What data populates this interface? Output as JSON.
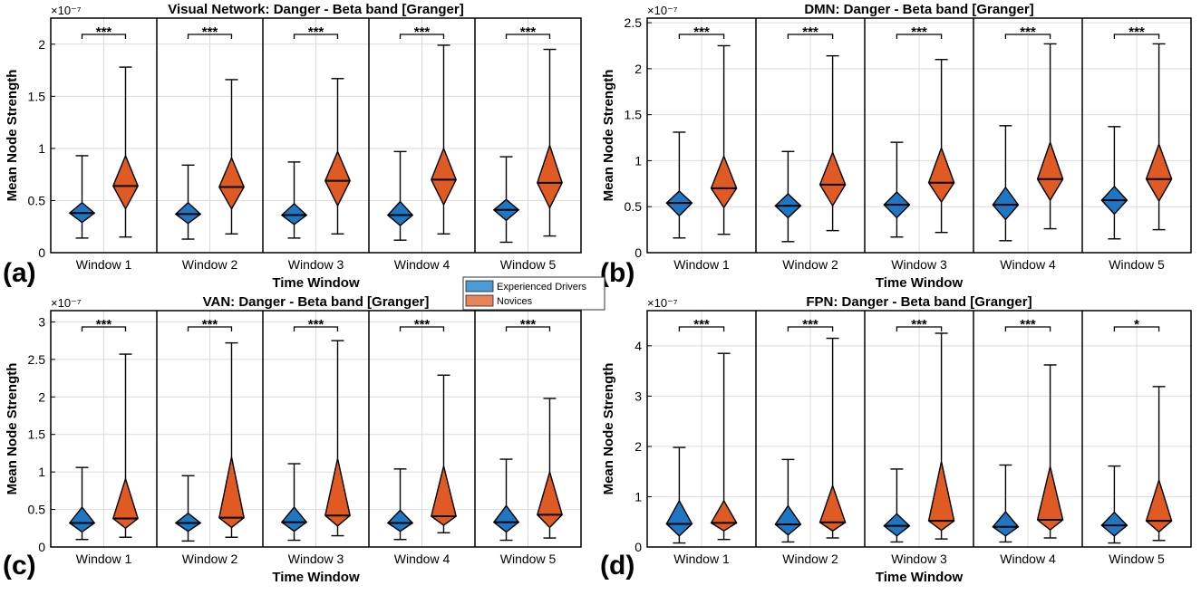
{
  "chart_data": [
    {
      "panel": "(a)",
      "type": "violin-box",
      "title": "Visual Network: Danger - Beta band [Granger]",
      "xlabel": "Time Window",
      "ylabel": "Mean Node Strength",
      "exponent": "×10⁻⁷",
      "ylim": [
        0,
        2.25
      ],
      "yticks": [
        0,
        0.5,
        1,
        1.5,
        2
      ],
      "ytick_labels": [
        "0",
        "0.5",
        "1",
        "1.5",
        "2"
      ],
      "grid": true,
      "categories": [
        "Window 1",
        "Window 2",
        "Window 3",
        "Window 4",
        "Window 5"
      ],
      "significance": [
        "***",
        "***",
        "***",
        "***",
        "***"
      ],
      "series": [
        {
          "name": "Experienced Drivers",
          "color": "#1f77c4",
          "min": [
            0.14,
            0.13,
            0.14,
            0.12,
            0.1
          ],
          "q1": [
            0.29,
            0.28,
            0.27,
            0.26,
            0.31
          ],
          "median": [
            0.38,
            0.37,
            0.36,
            0.36,
            0.41
          ],
          "q3": [
            0.48,
            0.48,
            0.47,
            0.49,
            0.51
          ],
          "max": [
            0.93,
            0.84,
            0.87,
            0.97,
            0.92
          ]
        },
        {
          "name": "Novices",
          "color": "#e05a24",
          "min": [
            0.15,
            0.18,
            0.18,
            0.18,
            0.16
          ],
          "q1": [
            0.42,
            0.42,
            0.45,
            0.46,
            0.43
          ],
          "median": [
            0.64,
            0.63,
            0.69,
            0.7,
            0.67
          ],
          "q3": [
            0.93,
            0.91,
            0.97,
            1.0,
            1.03
          ],
          "max": [
            1.78,
            1.66,
            1.67,
            1.99,
            1.95
          ]
        }
      ]
    },
    {
      "panel": "(b)",
      "type": "violin-box",
      "title": "DMN: Danger - Beta band [Granger]",
      "xlabel": "Time Window",
      "ylabel": "Mean Node Strength",
      "exponent": "×10⁻⁷",
      "ylim": [
        0,
        2.55
      ],
      "yticks": [
        0,
        0.5,
        1,
        1.5,
        2,
        2.5
      ],
      "ytick_labels": [
        "0",
        "0.5",
        "1",
        "1.5",
        "2",
        "2.5"
      ],
      "grid": true,
      "categories": [
        "Window 1",
        "Window 2",
        "Window 3",
        "Window 4",
        "Window 5"
      ],
      "significance": [
        "***",
        "***",
        "***",
        "***",
        "***"
      ],
      "series": [
        {
          "name": "Experienced Drivers",
          "color": "#1f77c4",
          "min": [
            0.16,
            0.12,
            0.17,
            0.13,
            0.15
          ],
          "q1": [
            0.4,
            0.38,
            0.38,
            0.36,
            0.42
          ],
          "median": [
            0.54,
            0.51,
            0.52,
            0.52,
            0.57
          ],
          "q3": [
            0.67,
            0.64,
            0.66,
            0.71,
            0.72
          ],
          "max": [
            1.31,
            1.1,
            1.2,
            1.38,
            1.37
          ]
        },
        {
          "name": "Novices",
          "color": "#e05a24",
          "min": [
            0.2,
            0.24,
            0.22,
            0.26,
            0.25
          ],
          "q1": [
            0.49,
            0.51,
            0.55,
            0.57,
            0.56
          ],
          "median": [
            0.7,
            0.74,
            0.76,
            0.8,
            0.8
          ],
          "q3": [
            1.05,
            1.09,
            1.14,
            1.2,
            1.18
          ],
          "max": [
            2.25,
            2.14,
            2.1,
            2.27,
            2.27
          ]
        }
      ]
    },
    {
      "panel": "(c)",
      "type": "violin-box",
      "title": "VAN: Danger - Beta band [Granger]",
      "xlabel": "Time Window",
      "ylabel": "Mean Node Strength",
      "exponent": "×10⁻⁷",
      "ylim": [
        0,
        3.15
      ],
      "yticks": [
        0,
        0.5,
        1,
        1.5,
        2,
        2.5,
        3
      ],
      "ytick_labels": [
        "0",
        "0.5",
        "1",
        "1.5",
        "2",
        "2.5",
        "3"
      ],
      "grid": true,
      "categories": [
        "Window 1",
        "Window 2",
        "Window 3",
        "Window 4",
        "Window 5"
      ],
      "significance": [
        "***",
        "***",
        "***",
        "***",
        "***"
      ],
      "series": [
        {
          "name": "Experienced Drivers",
          "color": "#1f77c4",
          "min": [
            0.1,
            0.08,
            0.09,
            0.1,
            0.09
          ],
          "q1": [
            0.2,
            0.21,
            0.21,
            0.21,
            0.2
          ],
          "median": [
            0.32,
            0.32,
            0.33,
            0.32,
            0.33
          ],
          "q3": [
            0.53,
            0.45,
            0.53,
            0.49,
            0.55
          ],
          "max": [
            1.06,
            0.95,
            1.11,
            1.04,
            1.17
          ]
        },
        {
          "name": "Novices",
          "color": "#e05a24",
          "min": [
            0.13,
            0.13,
            0.15,
            0.19,
            0.12
          ],
          "q1": [
            0.25,
            0.26,
            0.28,
            0.29,
            0.26
          ],
          "median": [
            0.38,
            0.39,
            0.42,
            0.41,
            0.43
          ],
          "q3": [
            0.91,
            1.2,
            1.18,
            1.08,
            1.0
          ],
          "max": [
            2.57,
            2.72,
            2.75,
            2.29,
            1.98
          ]
        }
      ]
    },
    {
      "panel": "(d)",
      "type": "violin-box",
      "title": "FPN: Danger - Beta band [Granger]",
      "xlabel": "Time Window",
      "ylabel": "Mean Node Strength",
      "exponent": "×10⁻⁷",
      "ylim": [
        0,
        4.7
      ],
      "yticks": [
        0,
        1,
        2,
        3,
        4
      ],
      "ytick_labels": [
        "0",
        "1",
        "2",
        "3",
        "4"
      ],
      "grid": true,
      "categories": [
        "Window 1",
        "Window 2",
        "Window 3",
        "Window 4",
        "Window 5"
      ],
      "significance": [
        "***",
        "***",
        "***",
        "***",
        "*"
      ],
      "series": [
        {
          "name": "Experienced Drivers",
          "color": "#1f77c4",
          "min": [
            0.08,
            0.1,
            0.1,
            0.1,
            0.08
          ],
          "q1": [
            0.22,
            0.24,
            0.22,
            0.22,
            0.22
          ],
          "median": [
            0.46,
            0.45,
            0.42,
            0.4,
            0.43
          ],
          "q3": [
            0.92,
            0.82,
            0.66,
            0.7,
            0.69
          ],
          "max": [
            1.98,
            1.74,
            1.55,
            1.63,
            1.61
          ]
        },
        {
          "name": "Novices",
          "color": "#e05a24",
          "min": [
            0.15,
            0.18,
            0.16,
            0.18,
            0.13
          ],
          "q1": [
            0.32,
            0.32,
            0.33,
            0.34,
            0.3
          ],
          "median": [
            0.48,
            0.49,
            0.52,
            0.54,
            0.52
          ],
          "q3": [
            0.92,
            1.22,
            1.7,
            1.6,
            1.33
          ],
          "max": [
            3.85,
            4.15,
            4.25,
            3.62,
            3.19
          ]
        }
      ]
    }
  ],
  "legend": {
    "entries": [
      {
        "label": "Experienced Drivers",
        "color": "#4c9ad6"
      },
      {
        "label": "Novices",
        "color": "#e8835a"
      }
    ]
  },
  "colors": {
    "blue": "#1f77c4",
    "orange": "#e05a24",
    "grid": "#d9d9d9",
    "axis": "#000000"
  }
}
